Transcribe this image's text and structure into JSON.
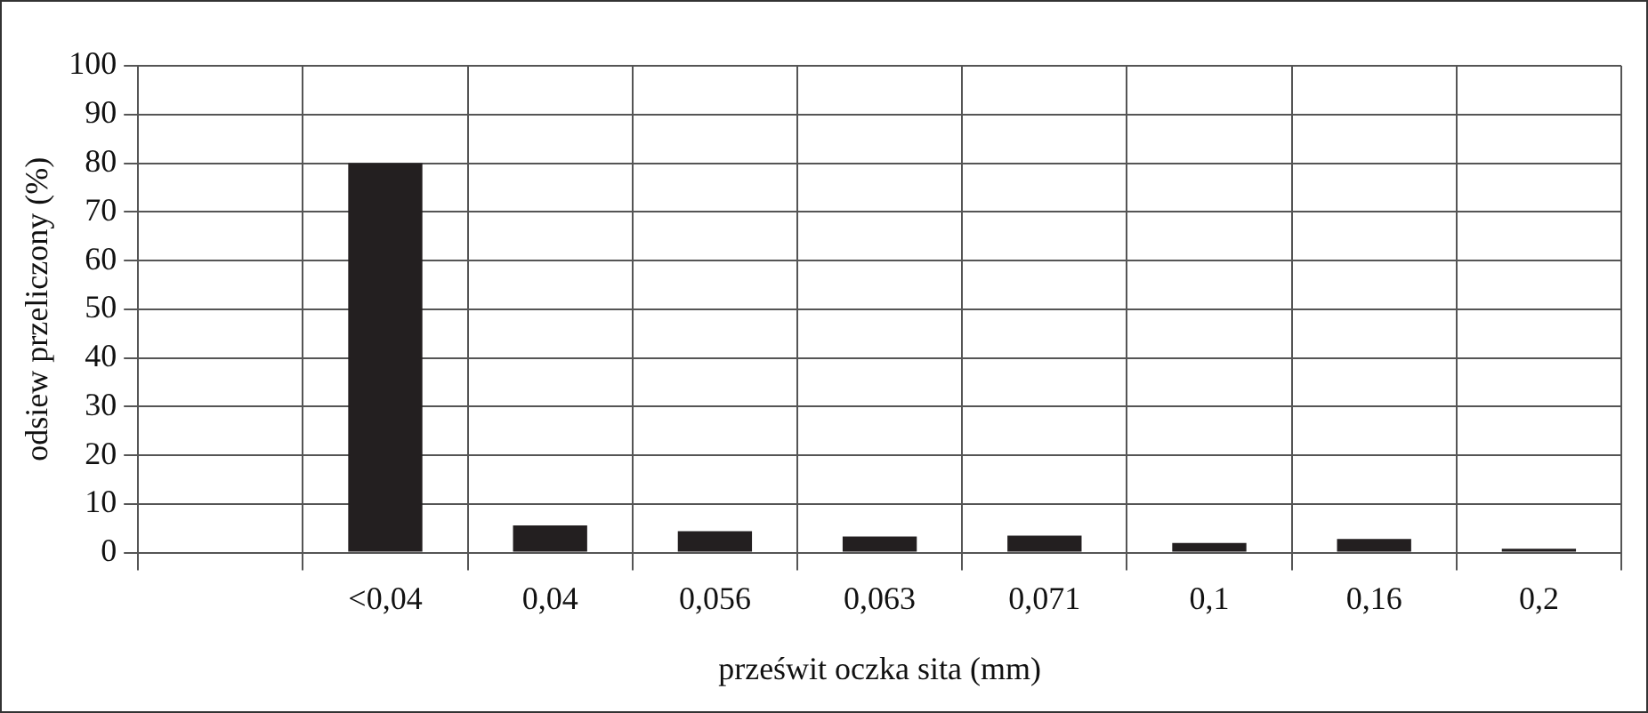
{
  "chart_data": {
    "type": "bar",
    "xlabel": "prześwit oczka sita (mm)",
    "ylabel": "odsiew przeliczony (%)",
    "categories": [
      null,
      "<0,04",
      "0,04",
      "0,056",
      "0,063",
      "0,071",
      "0,1",
      "0,16",
      "0,2"
    ],
    "values": [
      null,
      80,
      5.6,
      4.4,
      3.3,
      3.5,
      2.0,
      2.8,
      0.8
    ],
    "color": "#231f20",
    "ylim": [
      0,
      100
    ],
    "yticks": [
      0,
      10,
      20,
      30,
      40,
      50,
      60,
      70,
      80,
      90,
      100
    ],
    "grid": true,
    "legend": false
  }
}
